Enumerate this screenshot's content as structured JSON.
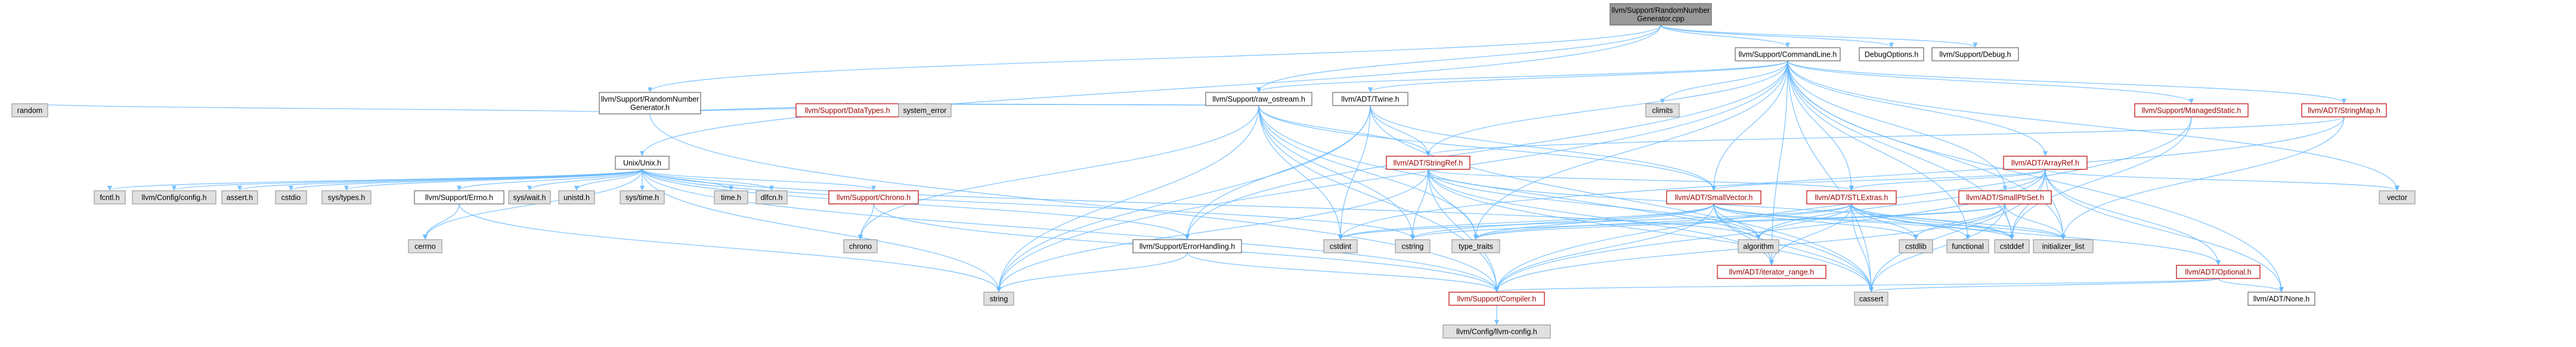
{
  "graph": {
    "nodes": [
      {
        "id": "root",
        "label": [
          "llvm/Support/RandomNumber",
          "Generator.cpp"
        ],
        "style": "root"
      },
      {
        "id": "cmdline",
        "label": [
          "llvm/Support/CommandLine.h"
        ],
        "style": "normal"
      },
      {
        "id": "debugopt",
        "label": [
          "DebugOptions.h"
        ],
        "style": "normal"
      },
      {
        "id": "debug",
        "label": [
          "llvm/Support/Debug.h"
        ],
        "style": "normal"
      },
      {
        "id": "rng",
        "label": [
          "llvm/Support/RandomNumber",
          "Generator.h"
        ],
        "style": "normal"
      },
      {
        "id": "random",
        "label": [
          "random"
        ],
        "style": "gray"
      },
      {
        "id": "unix",
        "label": [
          "Unix/Unix.h"
        ],
        "style": "normal"
      },
      {
        "id": "datatypes",
        "label": [
          "llvm/Support/DataTypes.h"
        ],
        "style": "red"
      },
      {
        "id": "syserr",
        "label": [
          "system_error"
        ],
        "style": "gray"
      },
      {
        "id": "rawos",
        "label": [
          "llvm/Support/raw_ostream.h"
        ],
        "style": "normal"
      },
      {
        "id": "twine",
        "label": [
          "llvm/ADT/Twine.h"
        ],
        "style": "normal"
      },
      {
        "id": "climits",
        "label": [
          "climits"
        ],
        "style": "gray"
      },
      {
        "id": "managed",
        "label": [
          "llvm/Support/ManagedStatic.h"
        ],
        "style": "red"
      },
      {
        "id": "strmap",
        "label": [
          "llvm/ADT/StringMap.h"
        ],
        "style": "red"
      },
      {
        "id": "arrayref",
        "label": [
          "llvm/ADT/ArrayRef.h"
        ],
        "style": "red"
      },
      {
        "id": "stringref",
        "label": [
          "llvm/ADT/StringRef.h"
        ],
        "style": "red"
      },
      {
        "id": "smallvec",
        "label": [
          "llvm/ADT/SmallVector.h"
        ],
        "style": "red"
      },
      {
        "id": "stlextras",
        "label": [
          "llvm/ADT/STLExtras.h"
        ],
        "style": "red"
      },
      {
        "id": "smallptr",
        "label": [
          "llvm/ADT/SmallPtrSet.h"
        ],
        "style": "red"
      },
      {
        "id": "vector",
        "label": [
          "vector"
        ],
        "style": "gray"
      },
      {
        "id": "fcntl",
        "label": [
          "fcntl.h"
        ],
        "style": "gray"
      },
      {
        "id": "cfg",
        "label": [
          "llvm/Config/config.h"
        ],
        "style": "gray"
      },
      {
        "id": "assert",
        "label": [
          "assert.h"
        ],
        "style": "gray"
      },
      {
        "id": "cstdio",
        "label": [
          "cstdio"
        ],
        "style": "gray"
      },
      {
        "id": "systypes",
        "label": [
          "sys/types.h"
        ],
        "style": "gray"
      },
      {
        "id": "errno",
        "label": [
          "llvm/Support/Errno.h"
        ],
        "style": "normal"
      },
      {
        "id": "syswait",
        "label": [
          "sys/wait.h"
        ],
        "style": "gray"
      },
      {
        "id": "unistd",
        "label": [
          "unistd.h"
        ],
        "style": "gray"
      },
      {
        "id": "systime",
        "label": [
          "sys/time.h"
        ],
        "style": "gray"
      },
      {
        "id": "timeh",
        "label": [
          "time.h"
        ],
        "style": "gray"
      },
      {
        "id": "dlfcn",
        "label": [
          "dlfcn.h"
        ],
        "style": "gray"
      },
      {
        "id": "chronoh",
        "label": [
          "llvm/Support/Chrono.h"
        ],
        "style": "red"
      },
      {
        "id": "cerrno",
        "label": [
          "cerrno"
        ],
        "style": "gray"
      },
      {
        "id": "chrono",
        "label": [
          "chrono"
        ],
        "style": "gray"
      },
      {
        "id": "errhandling",
        "label": [
          "llvm/Support/ErrorHandling.h"
        ],
        "style": "normal"
      },
      {
        "id": "typetraits",
        "label": [
          "type_traits"
        ],
        "style": "gray"
      },
      {
        "id": "cstdint",
        "label": [
          "cstdint"
        ],
        "style": "gray"
      },
      {
        "id": "cstring",
        "label": [
          "cstring"
        ],
        "style": "gray"
      },
      {
        "id": "algorithm",
        "label": [
          "algorithm"
        ],
        "style": "gray"
      },
      {
        "id": "iterrange",
        "label": [
          "llvm/ADT/iterator_range.h"
        ],
        "style": "red"
      },
      {
        "id": "cstdlib",
        "label": [
          "cstdlib"
        ],
        "style": "gray"
      },
      {
        "id": "functional",
        "label": [
          "functional"
        ],
        "style": "gray"
      },
      {
        "id": "cstddef",
        "label": [
          "cstddef"
        ],
        "style": "gray"
      },
      {
        "id": "initlist",
        "label": [
          "initializer_list"
        ],
        "style": "gray"
      },
      {
        "id": "optional",
        "label": [
          "llvm/ADT/Optional.h"
        ],
        "style": "red"
      },
      {
        "id": "string",
        "label": [
          "string"
        ],
        "style": "gray"
      },
      {
        "id": "compiler",
        "label": [
          "llvm/Support/Compiler.h"
        ],
        "style": "red"
      },
      {
        "id": "cassert",
        "label": [
          "cassert"
        ],
        "style": "gray"
      },
      {
        "id": "none",
        "label": [
          "llvm/ADT/None.h"
        ],
        "style": "normal"
      },
      {
        "id": "llvmcfg",
        "label": [
          "llvm/Config/llvm-config.h"
        ],
        "style": "gray"
      }
    ],
    "edges": [
      [
        "root",
        "cmdline"
      ],
      [
        "root",
        "debugopt"
      ],
      [
        "root",
        "debug"
      ],
      [
        "root",
        "rng"
      ],
      [
        "root",
        "unix"
      ],
      [
        "root",
        "rawos"
      ],
      [
        "rng",
        "random"
      ],
      [
        "rng",
        "datatypes"
      ],
      [
        "rng",
        "syserr"
      ],
      [
        "rng",
        "compiler"
      ],
      [
        "cmdline",
        "climits"
      ],
      [
        "cmdline",
        "managed"
      ],
      [
        "cmdline",
        "strmap"
      ],
      [
        "cmdline",
        "arrayref"
      ],
      [
        "cmdline",
        "twine"
      ],
      [
        "cmdline",
        "rawos"
      ],
      [
        "cmdline",
        "stringref"
      ],
      [
        "cmdline",
        "smallvec"
      ],
      [
        "cmdline",
        "stlextras"
      ],
      [
        "cmdline",
        "smallptr"
      ],
      [
        "cmdline",
        "vector"
      ],
      [
        "cmdline",
        "errhandling"
      ],
      [
        "cmdline",
        "cassert"
      ],
      [
        "cmdline",
        "cstddef"
      ],
      [
        "cmdline",
        "string"
      ],
      [
        "cmdline",
        "typetraits"
      ],
      [
        "cmdline",
        "functional"
      ],
      [
        "cmdline",
        "initlist"
      ],
      [
        "cmdline",
        "iterrange"
      ],
      [
        "cmdline",
        "none"
      ],
      [
        "unix",
        "fcntl"
      ],
      [
        "unix",
        "cfg"
      ],
      [
        "unix",
        "assert"
      ],
      [
        "unix",
        "cstdio"
      ],
      [
        "unix",
        "systypes"
      ],
      [
        "unix",
        "errno"
      ],
      [
        "unix",
        "syswait"
      ],
      [
        "unix",
        "unistd"
      ],
      [
        "unix",
        "systime"
      ],
      [
        "unix",
        "timeh"
      ],
      [
        "unix",
        "dlfcn"
      ],
      [
        "unix",
        "chronoh"
      ],
      [
        "unix",
        "cerrno"
      ],
      [
        "unix",
        "errhandling"
      ],
      [
        "unix",
        "string"
      ],
      [
        "unix",
        "compiler"
      ],
      [
        "unix",
        "cstring"
      ],
      [
        "unix",
        "algorithm"
      ],
      [
        "rawos",
        "datatypes"
      ],
      [
        "rawos",
        "syserr"
      ],
      [
        "rawos",
        "stringref"
      ],
      [
        "rawos",
        "chrono"
      ],
      [
        "rawos",
        "cstdint"
      ],
      [
        "rawos",
        "cstring"
      ],
      [
        "rawos",
        "string"
      ],
      [
        "rawos",
        "typetraits"
      ],
      [
        "rawos",
        "compiler"
      ],
      [
        "rawos",
        "cassert"
      ],
      [
        "rawos",
        "smallvec"
      ],
      [
        "twine",
        "stringref"
      ],
      [
        "twine",
        "smallvec"
      ],
      [
        "twine",
        "errhandling"
      ],
      [
        "twine",
        "cassert"
      ],
      [
        "twine",
        "cstdint"
      ],
      [
        "twine",
        "string"
      ],
      [
        "stringref",
        "stlextras"
      ],
      [
        "stringref",
        "iterrange"
      ],
      [
        "stringref",
        "compiler"
      ],
      [
        "stringref",
        "algorithm"
      ],
      [
        "stringref",
        "cstddef"
      ],
      [
        "stringref",
        "cstring"
      ],
      [
        "stringref",
        "limits"
      ],
      [
        "stringref",
        "string"
      ],
      [
        "stringref",
        "typetraits"
      ],
      [
        "stringref",
        "cassert"
      ],
      [
        "smallvec",
        "iterrange"
      ],
      [
        "smallvec",
        "compiler"
      ],
      [
        "smallvec",
        "algorithm"
      ],
      [
        "smallvec",
        "cassert"
      ],
      [
        "smallvec",
        "cstddef"
      ],
      [
        "smallvec",
        "cstdlib"
      ],
      [
        "smallvec",
        "cstring"
      ],
      [
        "smallvec",
        "typetraits"
      ],
      [
        "smallvec",
        "cstdint"
      ],
      [
        "smallvec",
        "initlist"
      ],
      [
        "stlextras",
        "iterrange"
      ],
      [
        "stlextras",
        "optional"
      ],
      [
        "stlextras",
        "algorithm"
      ],
      [
        "stlextras",
        "cassert"
      ],
      [
        "stlextras",
        "cstddef"
      ],
      [
        "stlextras",
        "cstdint"
      ],
      [
        "stlextras",
        "cstdlib"
      ],
      [
        "stlextras",
        "functional"
      ],
      [
        "stlextras",
        "initlist"
      ],
      [
        "stlextras",
        "typetraits"
      ],
      [
        "smallptr",
        "compiler"
      ],
      [
        "smallptr",
        "cassert"
      ],
      [
        "smallptr",
        "cstddef"
      ],
      [
        "smallptr",
        "cstdlib"
      ],
      [
        "smallptr",
        "cstring"
      ],
      [
        "smallptr",
        "initlist"
      ],
      [
        "smallptr",
        "typetraits"
      ],
      [
        "arrayref",
        "smallvec"
      ],
      [
        "arrayref",
        "stlextras"
      ],
      [
        "arrayref",
        "optional"
      ],
      [
        "arrayref",
        "none"
      ],
      [
        "arrayref",
        "compiler"
      ],
      [
        "arrayref",
        "algorithm"
      ],
      [
        "arrayref",
        "cassert"
      ],
      [
        "arrayref",
        "cstddef"
      ],
      [
        "arrayref",
        "initlist"
      ],
      [
        "arrayref",
        "vector"
      ],
      [
        "strmap",
        "stringref"
      ],
      [
        "strmap",
        "cstdint"
      ],
      [
        "strmap",
        "initlist"
      ],
      [
        "managed",
        "cstddef"
      ],
      [
        "managed",
        "compiler"
      ],
      [
        "optional",
        "none"
      ],
      [
        "optional",
        "compiler"
      ],
      [
        "optional",
        "cassert"
      ],
      [
        "errhandling",
        "compiler"
      ],
      [
        "errhandling",
        "string"
      ],
      [
        "errno",
        "cerrno"
      ],
      [
        "errno",
        "string"
      ],
      [
        "chronoh",
        "chrono"
      ],
      [
        "chronoh",
        "compiler"
      ],
      [
        "compiler",
        "llvmcfg"
      ]
    ]
  }
}
